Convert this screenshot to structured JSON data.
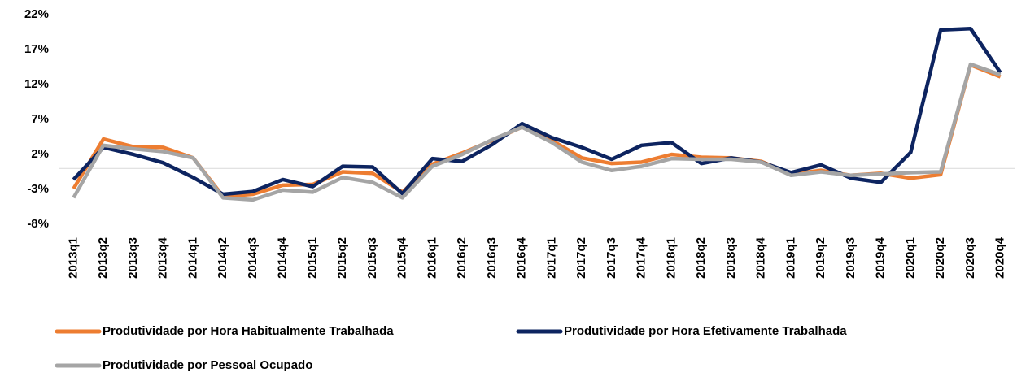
{
  "chart_data": {
    "type": "line",
    "categories": [
      "2013q1",
      "2013q2",
      "2013q3",
      "2013q4",
      "2014q1",
      "2014q2",
      "2014q3",
      "2014q4",
      "2015q1",
      "2015q2",
      "2015q3",
      "2015q4",
      "2016q1",
      "2016q2",
      "2016q3",
      "2016q4",
      "2017q1",
      "2017q2",
      "2017q3",
      "2017q4",
      "2018q1",
      "2018q2",
      "2018q3",
      "2018q4",
      "2019q1",
      "2019q2",
      "2019q3",
      "2019q4",
      "2020q1",
      "2020q2",
      "2020q3",
      "2020q4"
    ],
    "series": [
      {
        "name": "Produtividade por Hora Habitualmente Trabalhada",
        "color": "#ed7d31",
        "values": [
          -2.9,
          4.2,
          3.1,
          3.0,
          1.5,
          -4.0,
          -3.7,
          -2.4,
          -2.3,
          -0.5,
          -0.7,
          -3.4,
          0.6,
          2.2,
          4.0,
          5.9,
          4.0,
          1.5,
          0.7,
          0.9,
          2.0,
          1.6,
          1.5,
          1.0,
          -0.8,
          -0.3,
          -1.0,
          -0.7,
          -1.4,
          -0.9,
          14.8,
          13.1
        ]
      },
      {
        "name": "Produtividade por Hora Efetivamente Trabalhada",
        "color": "#0d2460",
        "values": [
          -1.6,
          3.0,
          2.0,
          0.8,
          -1.3,
          -3.7,
          -3.3,
          -1.6,
          -2.6,
          0.3,
          0.2,
          -3.6,
          1.4,
          1.0,
          3.4,
          6.4,
          4.4,
          3.0,
          1.3,
          3.3,
          3.7,
          0.7,
          1.5,
          0.9,
          -0.6,
          0.5,
          -1.4,
          -2.0,
          2.3,
          19.8,
          20.0,
          13.7
        ]
      },
      {
        "name": "Produtividade por Pessoal Ocupado",
        "color": "#a5a5a5",
        "values": [
          -4.2,
          3.3,
          2.8,
          2.4,
          1.5,
          -4.2,
          -4.5,
          -3.1,
          -3.4,
          -1.3,
          -2.0,
          -4.2,
          0.3,
          2.0,
          4.1,
          5.9,
          3.7,
          0.9,
          -0.3,
          0.3,
          1.4,
          1.3,
          1.3,
          0.9,
          -1.0,
          -0.5,
          -1.0,
          -0.8,
          -0.6,
          -0.5,
          14.9,
          13.4
        ]
      }
    ],
    "ylim": [
      -8,
      22
    ],
    "yticks": [
      {
        "value": 22,
        "label": "22%"
      },
      {
        "value": 17,
        "label": "17%"
      },
      {
        "value": 12,
        "label": "12%"
      },
      {
        "value": 7,
        "label": "7%"
      },
      {
        "value": 2,
        "label": "2%"
      },
      {
        "value": -3,
        "label": "-3%"
      },
      {
        "value": -8,
        "label": "-8%"
      }
    ],
    "grid": false
  }
}
